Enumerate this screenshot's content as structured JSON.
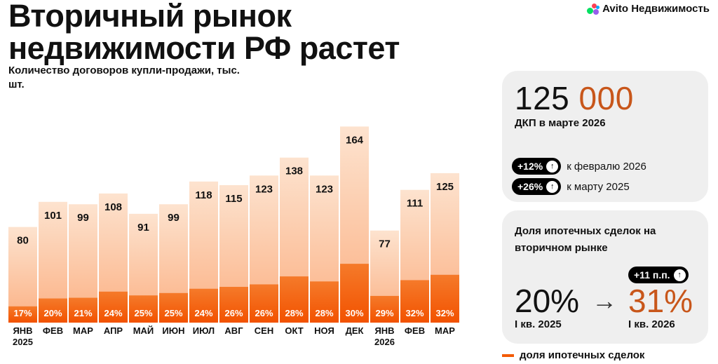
{
  "header": {
    "title_line1": "Вторичный рынок",
    "title_line2": "недвижимости РФ растет",
    "logo_text": "Avito Недвижимость"
  },
  "chart_data": {
    "type": "bar",
    "title": "Вторичный рынок недвижимости РФ растет",
    "subtitle": "Количество договоров купли-продажи, тыс. шт.",
    "categories": [
      [
        "ЯНВ",
        "2025"
      ],
      [
        "ФЕВ"
      ],
      [
        "МАР"
      ],
      [
        "АПР"
      ],
      [
        "МАЙ"
      ],
      [
        "ИЮН"
      ],
      [
        "ИЮЛ"
      ],
      [
        "АВГ"
      ],
      [
        "СЕН"
      ],
      [
        "ОКТ"
      ],
      [
        "НОЯ"
      ],
      [
        "ДЕК"
      ],
      [
        "ЯНВ",
        "2026"
      ],
      [
        "ФЕВ"
      ],
      [
        "МАР"
      ]
    ],
    "series": [
      {
        "values": [
          80,
          101,
          99,
          108,
          91,
          99,
          118,
          115,
          123,
          138,
          123,
          164,
          77,
          111,
          125
        ]
      },
      {
        "name": "доля ипотечных сделок",
        "values": [
          17,
          20,
          21,
          24,
          25,
          25,
          24,
          26,
          26,
          28,
          28,
          30,
          29,
          32,
          32
        ],
        "unit": "%"
      }
    ],
    "legend_position": "bottom-right",
    "grid": false
  },
  "card_total": {
    "value_part1": "125",
    "value_part2": "000",
    "label": "ДКП в марте 2026",
    "changes": [
      {
        "delta": "+12%",
        "text": "к февралю 2026"
      },
      {
        "delta": "+26%",
        "text": "к марту 2025"
      }
    ]
  },
  "card_share": {
    "title": "Доля ипотечных сделок на вторичном рынке",
    "from_value": "20%",
    "from_label": "I кв. 2025",
    "to_value": "31%",
    "to_label": "I кв. 2026",
    "delta": "+11 п.п."
  },
  "icons": {
    "arrow_up": "arrow-up-icon",
    "arrow_right": "arrow-right-icon"
  },
  "colors": {
    "bar_light_top": "#fde2cd",
    "bar_light_bottom": "#fbb48a",
    "bar_dark": "#f35b04",
    "accent_text": "#c8561a"
  }
}
